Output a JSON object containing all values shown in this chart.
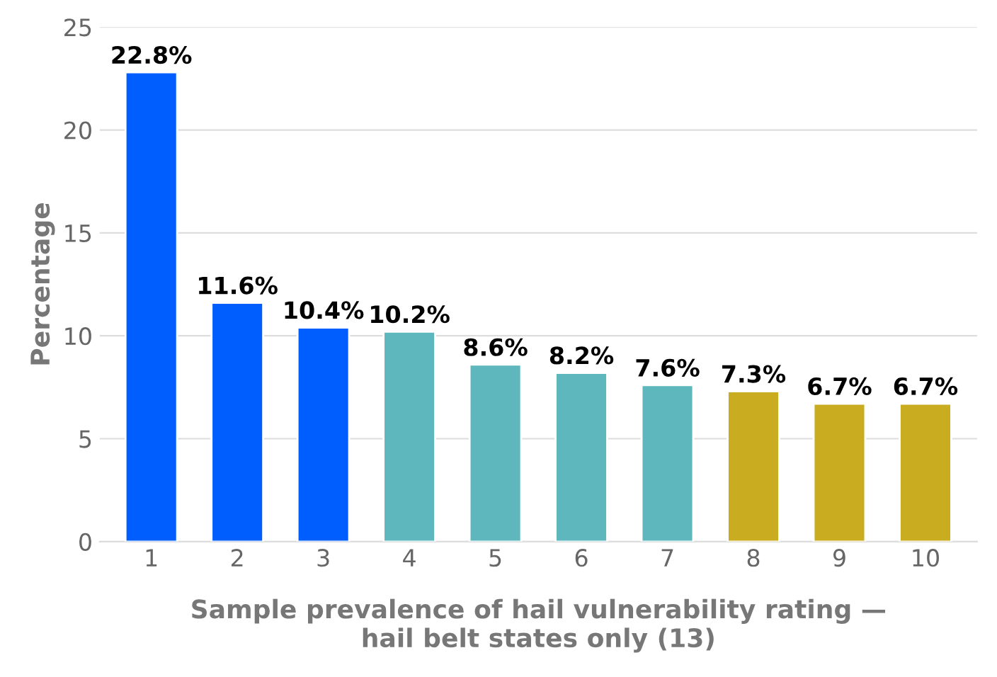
{
  "chart_data": {
    "type": "bar",
    "xlabel": "Sample prevalence of hail vulnerability rating —\nhail belt states only (13)",
    "ylabel": "Percentage",
    "categories": [
      "1",
      "2",
      "3",
      "4",
      "5",
      "6",
      "7",
      "8",
      "9",
      "10"
    ],
    "values": [
      22.8,
      11.6,
      10.4,
      10.2,
      8.6,
      8.2,
      7.6,
      7.3,
      6.7,
      6.7
    ],
    "colors": [
      "#005eff",
      "#005eff",
      "#005eff",
      "#5db7bd",
      "#5db7bd",
      "#5db7bd",
      "#5db7bd",
      "#c9ac20",
      "#c9ac20",
      "#c9ac20"
    ],
    "value_labels": [
      "22.8%",
      "11.6%",
      "10.4%",
      "10.2%",
      "8.6%",
      "8.2%",
      "7.6%",
      "7.3%",
      "6.7%",
      "6.7%"
    ],
    "ylim": [
      0,
      25
    ],
    "yticks": [
      0,
      5,
      10,
      15,
      20,
      25
    ],
    "grid": "y",
    "legend": false
  }
}
